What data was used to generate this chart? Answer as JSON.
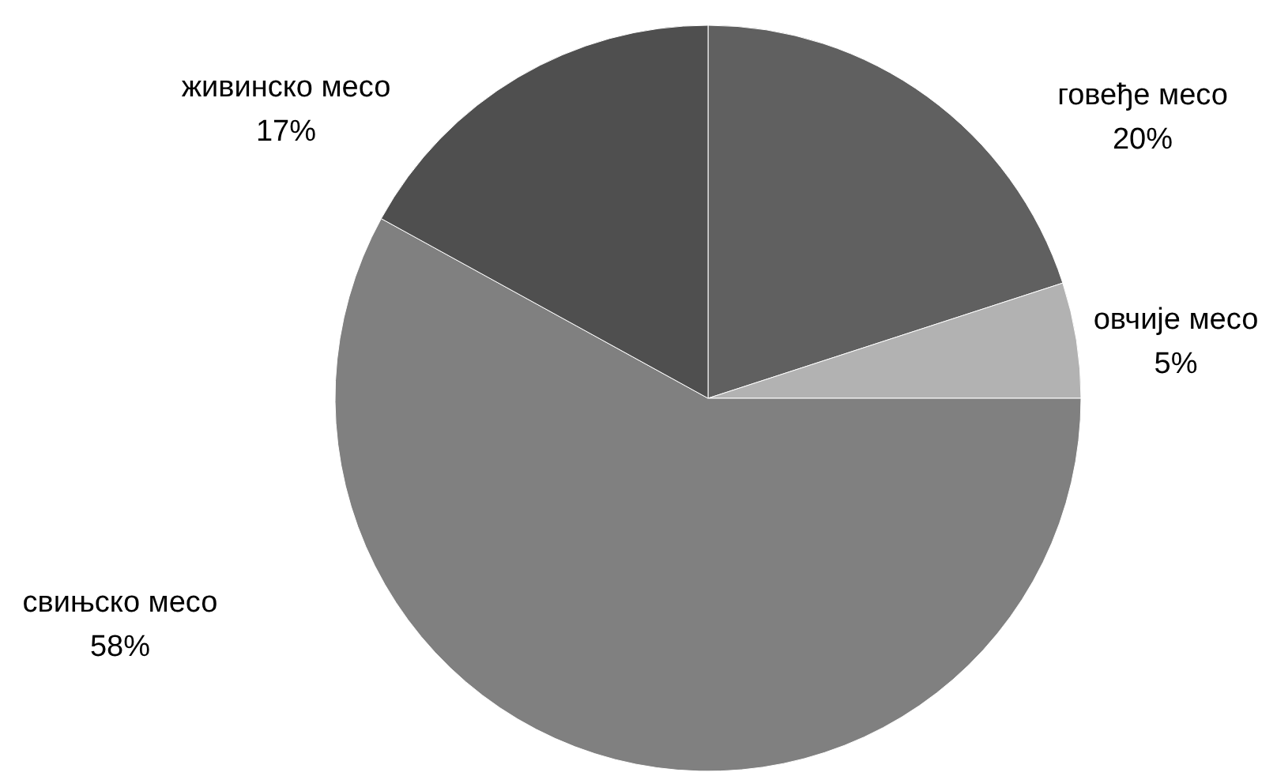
{
  "chart_data": {
    "type": "pie",
    "categories": [
      "говеђе месо",
      "овчије месо",
      "свињско месо",
      "живинско месо"
    ],
    "values": [
      20,
      5,
      58,
      17
    ],
    "value_labels": [
      "20%",
      "5%",
      "58%",
      "17%"
    ],
    "colors": [
      "#606060",
      "#b2b2b2",
      "#808080",
      "#4f4f4f"
    ]
  }
}
